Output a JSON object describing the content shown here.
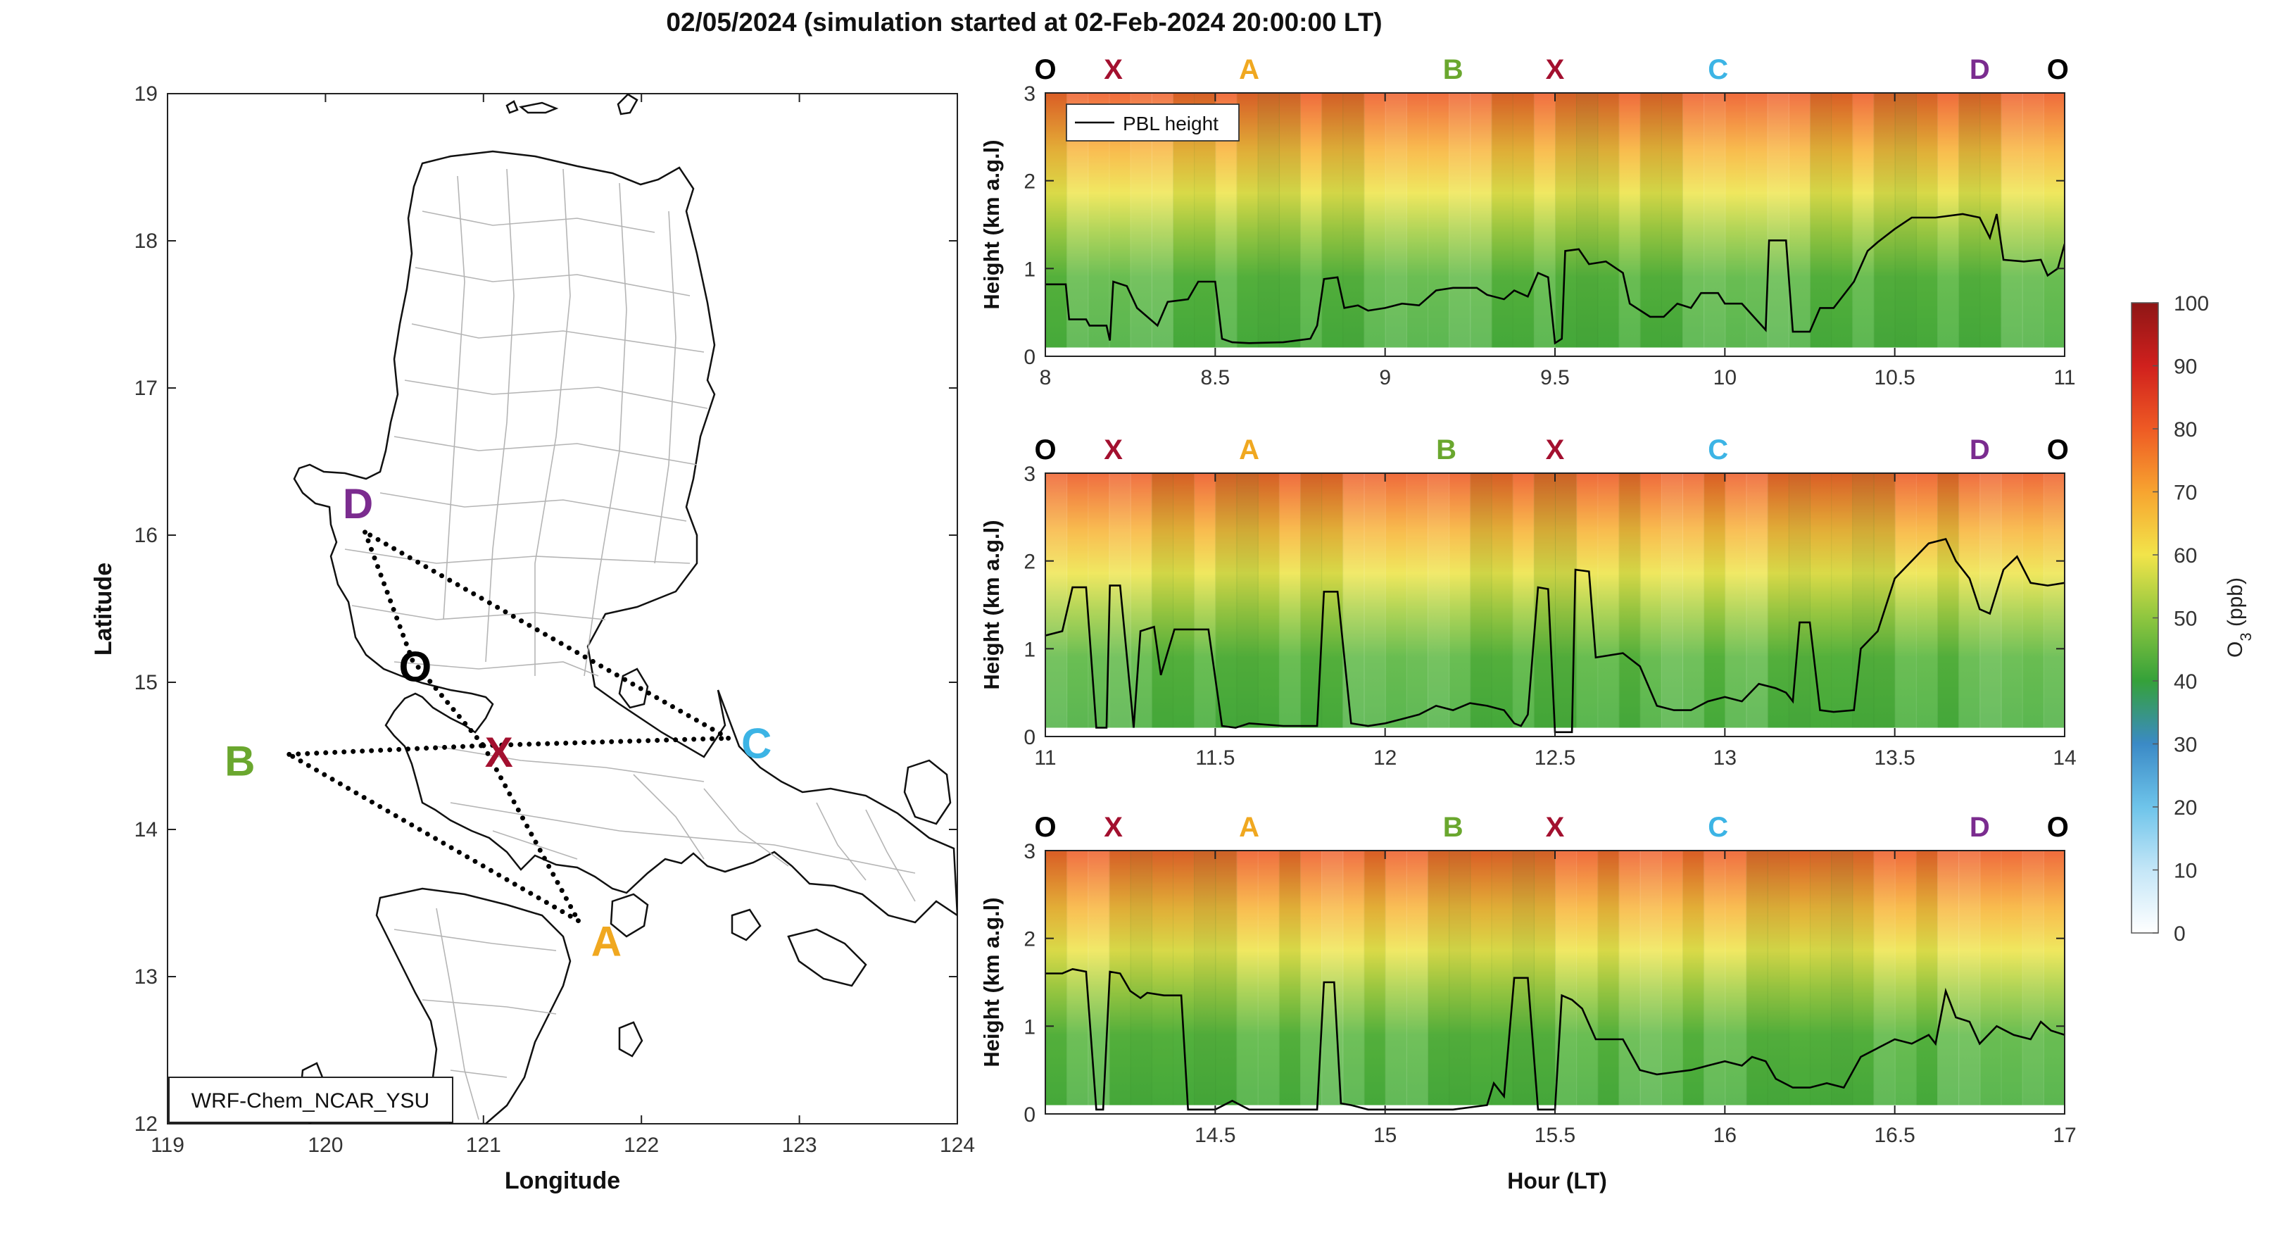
{
  "figure": {
    "title": "02/05/2024 (simulation started at 02-Feb-2024 20:00:00 LT)"
  },
  "map": {
    "xlabel": "Longitude",
    "ylabel": "Latitude",
    "xticks": [
      119,
      120,
      121,
      122,
      123,
      124
    ],
    "yticks": [
      12,
      13,
      14,
      15,
      16,
      17,
      18,
      19
    ],
    "xlim": [
      119,
      124
    ],
    "ylim": [
      12,
      19
    ],
    "model_label": "WRF-Chem_NCAR_YSU",
    "points": [
      {
        "label": "D",
        "lon": 120.25,
        "lat": 16.02,
        "color": "#7b2c8f"
      },
      {
        "label": "O",
        "lon": 120.55,
        "lat": 15.15,
        "color": "#000000"
      },
      {
        "label": "X",
        "lon": 121.0,
        "lat": 14.57,
        "color": "#a3102f"
      },
      {
        "label": "B",
        "lon": 119.77,
        "lat": 14.51,
        "color": "#6aa72e"
      },
      {
        "label": "C",
        "lon": 122.55,
        "lat": 14.62,
        "color": "#3cb4e5"
      },
      {
        "label": "A",
        "lon": 121.6,
        "lat": 13.38,
        "color": "#f0a820"
      }
    ],
    "route": [
      "O",
      "X",
      "A",
      "B",
      "X",
      "C",
      "D",
      "O"
    ]
  },
  "chart_data": [
    {
      "type": "heatmap",
      "xlim": [
        8,
        11
      ],
      "xticks": [
        8,
        8.5,
        9,
        9.5,
        10,
        10.5,
        11
      ],
      "ylabel": "Height (km a.g.l)",
      "ylim": [
        0,
        3
      ],
      "yticks": [
        0,
        1,
        2,
        3
      ],
      "legend": "PBL height",
      "legend_position": "top-left",
      "waypoints": [
        {
          "label": "O",
          "t": 8.0
        },
        {
          "label": "X",
          "t": 8.2
        },
        {
          "label": "A",
          "t": 8.6
        },
        {
          "label": "B",
          "t": 9.2
        },
        {
          "label": "X",
          "t": 9.5
        },
        {
          "label": "C",
          "t": 9.98
        },
        {
          "label": "D",
          "t": 10.75
        },
        {
          "label": "O",
          "t": 10.98
        }
      ],
      "pbl": [
        [
          8.0,
          0.82
        ],
        [
          8.06,
          0.82
        ],
        [
          8.07,
          0.42
        ],
        [
          8.12,
          0.42
        ],
        [
          8.13,
          0.35
        ],
        [
          8.18,
          0.35
        ],
        [
          8.19,
          0.18
        ],
        [
          8.2,
          0.85
        ],
        [
          8.24,
          0.8
        ],
        [
          8.27,
          0.55
        ],
        [
          8.3,
          0.45
        ],
        [
          8.33,
          0.35
        ],
        [
          8.36,
          0.62
        ],
        [
          8.42,
          0.65
        ],
        [
          8.45,
          0.85
        ],
        [
          8.5,
          0.85
        ],
        [
          8.52,
          0.2
        ],
        [
          8.55,
          0.16
        ],
        [
          8.6,
          0.15
        ],
        [
          8.7,
          0.16
        ],
        [
          8.78,
          0.2
        ],
        [
          8.8,
          0.35
        ],
        [
          8.82,
          0.88
        ],
        [
          8.86,
          0.9
        ],
        [
          8.88,
          0.55
        ],
        [
          8.92,
          0.58
        ],
        [
          8.95,
          0.52
        ],
        [
          9.0,
          0.55
        ],
        [
          9.05,
          0.6
        ],
        [
          9.1,
          0.58
        ],
        [
          9.15,
          0.75
        ],
        [
          9.2,
          0.78
        ],
        [
          9.27,
          0.78
        ],
        [
          9.3,
          0.7
        ],
        [
          9.35,
          0.65
        ],
        [
          9.38,
          0.75
        ],
        [
          9.42,
          0.68
        ],
        [
          9.45,
          0.95
        ],
        [
          9.48,
          0.9
        ],
        [
          9.5,
          0.15
        ],
        [
          9.52,
          0.2
        ],
        [
          9.53,
          1.2
        ],
        [
          9.57,
          1.22
        ],
        [
          9.6,
          1.05
        ],
        [
          9.65,
          1.08
        ],
        [
          9.7,
          0.95
        ],
        [
          9.72,
          0.6
        ],
        [
          9.78,
          0.45
        ],
        [
          9.82,
          0.45
        ],
        [
          9.86,
          0.6
        ],
        [
          9.9,
          0.55
        ],
        [
          9.93,
          0.72
        ],
        [
          9.98,
          0.72
        ],
        [
          10.0,
          0.6
        ],
        [
          10.05,
          0.6
        ],
        [
          10.12,
          0.3
        ],
        [
          10.13,
          1.32
        ],
        [
          10.18,
          1.32
        ],
        [
          10.2,
          0.28
        ],
        [
          10.25,
          0.28
        ],
        [
          10.28,
          0.55
        ],
        [
          10.32,
          0.55
        ],
        [
          10.38,
          0.85
        ],
        [
          10.42,
          1.2
        ],
        [
          10.45,
          1.3
        ],
        [
          10.5,
          1.45
        ],
        [
          10.55,
          1.58
        ],
        [
          10.62,
          1.58
        ],
        [
          10.7,
          1.62
        ],
        [
          10.75,
          1.58
        ],
        [
          10.78,
          1.35
        ],
        [
          10.8,
          1.62
        ],
        [
          10.82,
          1.1
        ],
        [
          10.88,
          1.08
        ],
        [
          10.93,
          1.1
        ],
        [
          10.95,
          0.92
        ],
        [
          10.98,
          1.0
        ],
        [
          11.0,
          1.28
        ]
      ]
    },
    {
      "type": "heatmap",
      "xlim": [
        11,
        14
      ],
      "xticks": [
        11,
        11.5,
        12,
        12.5,
        13,
        13.5,
        14
      ],
      "ylabel": "Height (km a.g.l)",
      "ylim": [
        0,
        3
      ],
      "yticks": [
        0,
        1,
        2,
        3
      ],
      "waypoints": [
        {
          "label": "O",
          "t": 11.0
        },
        {
          "label": "X",
          "t": 11.2
        },
        {
          "label": "A",
          "t": 11.6
        },
        {
          "label": "B",
          "t": 12.18
        },
        {
          "label": "X",
          "t": 12.5
        },
        {
          "label": "C",
          "t": 12.98
        },
        {
          "label": "D",
          "t": 13.75
        },
        {
          "label": "O",
          "t": 13.98
        }
      ],
      "pbl": [
        [
          11.0,
          1.15
        ],
        [
          11.05,
          1.2
        ],
        [
          11.08,
          1.7
        ],
        [
          11.12,
          1.7
        ],
        [
          11.15,
          0.1
        ],
        [
          11.18,
          0.1
        ],
        [
          11.19,
          1.72
        ],
        [
          11.22,
          1.72
        ],
        [
          11.26,
          0.1
        ],
        [
          11.28,
          1.2
        ],
        [
          11.32,
          1.25
        ],
        [
          11.34,
          0.7
        ],
        [
          11.38,
          1.22
        ],
        [
          11.45,
          1.22
        ],
        [
          11.48,
          1.22
        ],
        [
          11.52,
          0.12
        ],
        [
          11.56,
          0.1
        ],
        [
          11.6,
          0.15
        ],
        [
          11.7,
          0.12
        ],
        [
          11.8,
          0.12
        ],
        [
          11.82,
          1.65
        ],
        [
          11.86,
          1.65
        ],
        [
          11.9,
          0.15
        ],
        [
          11.95,
          0.12
        ],
        [
          12.0,
          0.15
        ],
        [
          12.05,
          0.2
        ],
        [
          12.1,
          0.25
        ],
        [
          12.15,
          0.35
        ],
        [
          12.2,
          0.3
        ],
        [
          12.25,
          0.38
        ],
        [
          12.3,
          0.35
        ],
        [
          12.35,
          0.3
        ],
        [
          12.38,
          0.15
        ],
        [
          12.4,
          0.12
        ],
        [
          12.42,
          0.25
        ],
        [
          12.45,
          1.7
        ],
        [
          12.48,
          1.68
        ],
        [
          12.5,
          0.05
        ],
        [
          12.55,
          0.05
        ],
        [
          12.56,
          1.9
        ],
        [
          12.6,
          1.88
        ],
        [
          12.62,
          0.9
        ],
        [
          12.7,
          0.95
        ],
        [
          12.75,
          0.8
        ],
        [
          12.8,
          0.35
        ],
        [
          12.85,
          0.3
        ],
        [
          12.9,
          0.3
        ],
        [
          12.95,
          0.4
        ],
        [
          13.0,
          0.45
        ],
        [
          13.05,
          0.4
        ],
        [
          13.1,
          0.6
        ],
        [
          13.15,
          0.55
        ],
        [
          13.18,
          0.5
        ],
        [
          13.2,
          0.4
        ],
        [
          13.22,
          1.3
        ],
        [
          13.25,
          1.3
        ],
        [
          13.28,
          0.3
        ],
        [
          13.32,
          0.28
        ],
        [
          13.38,
          0.3
        ],
        [
          13.4,
          1.0
        ],
        [
          13.45,
          1.2
        ],
        [
          13.5,
          1.8
        ],
        [
          13.55,
          2.0
        ],
        [
          13.6,
          2.2
        ],
        [
          13.65,
          2.25
        ],
        [
          13.68,
          2.0
        ],
        [
          13.72,
          1.8
        ],
        [
          13.75,
          1.45
        ],
        [
          13.78,
          1.4
        ],
        [
          13.82,
          1.9
        ],
        [
          13.86,
          2.05
        ],
        [
          13.9,
          1.75
        ],
        [
          13.95,
          1.72
        ],
        [
          14.0,
          1.75
        ]
      ]
    },
    {
      "type": "heatmap",
      "xlim": [
        14,
        17
      ],
      "xticks": [
        14.5,
        15,
        15.5,
        16,
        16.5,
        17
      ],
      "xlabel": "Hour (LT)",
      "ylabel": "Height (km a.g.l)",
      "ylim": [
        0,
        3
      ],
      "yticks": [
        0,
        1,
        2,
        3
      ],
      "waypoints": [
        {
          "label": "O",
          "t": 14.0
        },
        {
          "label": "X",
          "t": 14.2
        },
        {
          "label": "A",
          "t": 14.6
        },
        {
          "label": "B",
          "t": 15.2
        },
        {
          "label": "X",
          "t": 15.5
        },
        {
          "label": "C",
          "t": 15.98
        },
        {
          "label": "D",
          "t": 16.75
        },
        {
          "label": "O",
          "t": 16.98
        }
      ],
      "pbl": [
        [
          14.0,
          1.6
        ],
        [
          14.05,
          1.6
        ],
        [
          14.08,
          1.65
        ],
        [
          14.12,
          1.62
        ],
        [
          14.15,
          0.05
        ],
        [
          14.17,
          0.05
        ],
        [
          14.19,
          1.62
        ],
        [
          14.22,
          1.6
        ],
        [
          14.25,
          1.4
        ],
        [
          14.28,
          1.32
        ],
        [
          14.3,
          1.38
        ],
        [
          14.35,
          1.35
        ],
        [
          14.4,
          1.35
        ],
        [
          14.42,
          0.05
        ],
        [
          14.5,
          0.05
        ],
        [
          14.55,
          0.15
        ],
        [
          14.6,
          0.05
        ],
        [
          14.7,
          0.05
        ],
        [
          14.8,
          0.05
        ],
        [
          14.82,
          1.5
        ],
        [
          14.85,
          1.5
        ],
        [
          14.87,
          0.12
        ],
        [
          14.9,
          0.1
        ],
        [
          14.95,
          0.05
        ],
        [
          15.0,
          0.05
        ],
        [
          15.1,
          0.05
        ],
        [
          15.2,
          0.05
        ],
        [
          15.3,
          0.1
        ],
        [
          15.32,
          0.35
        ],
        [
          15.35,
          0.2
        ],
        [
          15.38,
          1.55
        ],
        [
          15.42,
          1.55
        ],
        [
          15.45,
          0.05
        ],
        [
          15.5,
          0.05
        ],
        [
          15.52,
          1.35
        ],
        [
          15.55,
          1.3
        ],
        [
          15.58,
          1.2
        ],
        [
          15.62,
          0.85
        ],
        [
          15.7,
          0.85
        ],
        [
          15.75,
          0.5
        ],
        [
          15.8,
          0.45
        ],
        [
          15.9,
          0.5
        ],
        [
          15.95,
          0.55
        ],
        [
          16.0,
          0.6
        ],
        [
          16.05,
          0.55
        ],
        [
          16.08,
          0.65
        ],
        [
          16.12,
          0.6
        ],
        [
          16.15,
          0.4
        ],
        [
          16.2,
          0.3
        ],
        [
          16.25,
          0.3
        ],
        [
          16.3,
          0.35
        ],
        [
          16.35,
          0.3
        ],
        [
          16.4,
          0.65
        ],
        [
          16.45,
          0.75
        ],
        [
          16.5,
          0.85
        ],
        [
          16.55,
          0.8
        ],
        [
          16.6,
          0.9
        ],
        [
          16.62,
          0.8
        ],
        [
          16.65,
          1.4
        ],
        [
          16.68,
          1.1
        ],
        [
          16.72,
          1.05
        ],
        [
          16.75,
          0.8
        ],
        [
          16.8,
          1.0
        ],
        [
          16.85,
          0.9
        ],
        [
          16.9,
          0.85
        ],
        [
          16.93,
          1.05
        ],
        [
          16.96,
          0.95
        ],
        [
          17.0,
          0.9
        ]
      ]
    }
  ],
  "colorbar": {
    "label_main": "O",
    "label_sub": "3",
    "label_unit": "(ppb)",
    "ticks": [
      0,
      10,
      20,
      30,
      40,
      50,
      60,
      70,
      80,
      90,
      100
    ],
    "range": [
      0,
      100
    ]
  }
}
